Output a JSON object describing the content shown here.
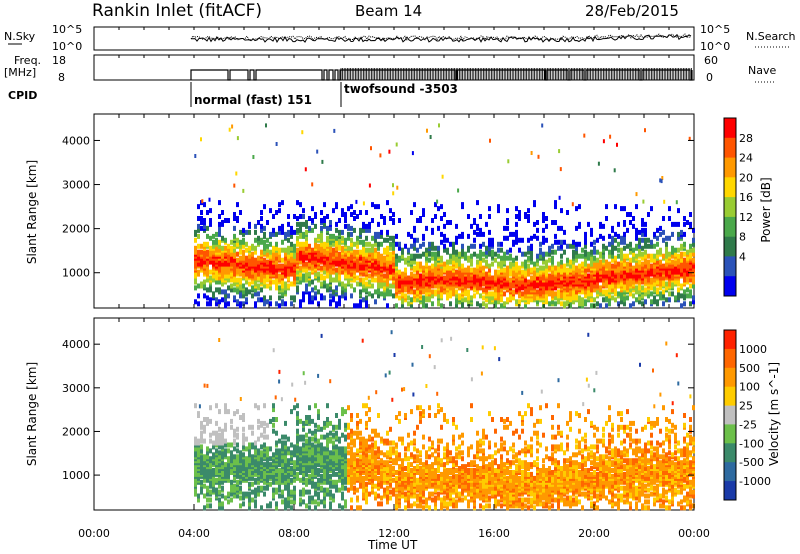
{
  "header": {
    "station": "Rankin Inlet (fitACF)",
    "beam": "Beam 14",
    "date": "28/Feb/2015"
  },
  "panels": {
    "nsky_label": "N.Sky",
    "nsky_ticks": [
      "10^5",
      "10^0"
    ],
    "nsearch_label": "N.Search",
    "nsearch_ticks": [
      "10^5",
      "10^0"
    ],
    "freq_label": "Freq.",
    "freq_unit": "[MHz]",
    "freq_ticks": [
      "18",
      "8"
    ],
    "nave_label": "Nave",
    "nave_ticks": [
      "60",
      "0"
    ],
    "cpid_label": "CPID",
    "cpid_modes": [
      {
        "name": "normal (fast) 151",
        "start_hour": 4.0
      },
      {
        "name": "twofsound -3503",
        "start_hour": 10.0
      }
    ]
  },
  "chart_data": [
    {
      "type": "heatmap",
      "name": "power",
      "ylabel": "Slant Range [km]",
      "yticks": [
        1000,
        2000,
        3000,
        4000
      ],
      "ylim": [
        200,
        4600
      ],
      "xlim": [
        0,
        24
      ],
      "colorbar_label": "Power [dB]",
      "colorbar_ticks": [
        "28",
        "24",
        "20",
        "16",
        "12",
        "8",
        "4"
      ],
      "colors": [
        "#0000ee",
        "#2b52b8",
        "#2f7a4a",
        "#4aa84a",
        "#99cc33",
        "#ffd700",
        "#ff9900",
        "#ff5500",
        "#ff0000"
      ]
    },
    {
      "type": "heatmap",
      "name": "velocity",
      "ylabel": "Slant Range [km]",
      "yticks": [
        1000,
        2000,
        3000,
        4000
      ],
      "ylim": [
        200,
        4600
      ],
      "xlim": [
        0,
        24
      ],
      "xticks": [
        "00:00",
        "04:00",
        "08:00",
        "12:00",
        "16:00",
        "20:00",
        "00:00"
      ],
      "xlabel": "Time UT",
      "colorbar_label": "Velocity [m s^-1]",
      "colorbar_ticks": [
        "1000",
        "500",
        "100",
        "25",
        "-25",
        "-100",
        "-500",
        "-1000"
      ],
      "colors": [
        "#1a3aa8",
        "#2e6aa0",
        "#3b8a6a",
        "#6cc04a",
        "#c0c0c0",
        "#ffcc00",
        "#ff9900",
        "#ff6600",
        "#ff2200"
      ]
    }
  ]
}
